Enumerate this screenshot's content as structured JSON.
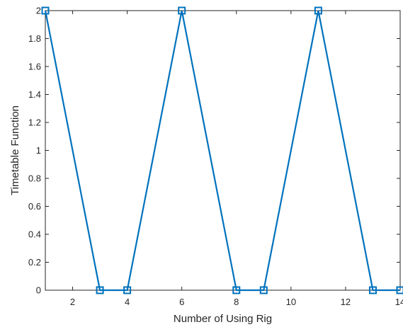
{
  "chart_data": {
    "type": "line",
    "title": "",
    "xlabel": "Number of Using Rig",
    "ylabel": "Timetable Function",
    "xlim": [
      1,
      14
    ],
    "ylim": [
      0,
      2
    ],
    "x_ticks": [
      2,
      4,
      6,
      8,
      10,
      12,
      14
    ],
    "y_ticks": [
      0,
      0.2,
      0.4,
      0.6,
      0.8,
      1,
      1.2,
      1.4,
      1.6,
      1.8,
      2
    ],
    "x_tick_labels": [
      "2",
      "4",
      "6",
      "8",
      "10",
      "12",
      "14"
    ],
    "y_tick_labels": [
      "0",
      "0.2",
      "0.4",
      "0.6",
      "0.8",
      "1",
      "1.2",
      "1.4",
      "1.6",
      "1.8",
      "2"
    ],
    "grid": false,
    "box": true,
    "series": [
      {
        "color": "#0072BD",
        "marker": "square",
        "points": [
          {
            "x": 1,
            "y": 2
          },
          {
            "x": 3,
            "y": 0
          },
          {
            "x": 4,
            "y": 0
          },
          {
            "x": 6,
            "y": 2
          },
          {
            "x": 8,
            "y": 0
          },
          {
            "x": 9,
            "y": 0
          },
          {
            "x": 11,
            "y": 2
          },
          {
            "x": 13,
            "y": 0
          },
          {
            "x": 14,
            "y": 0
          }
        ]
      }
    ]
  }
}
